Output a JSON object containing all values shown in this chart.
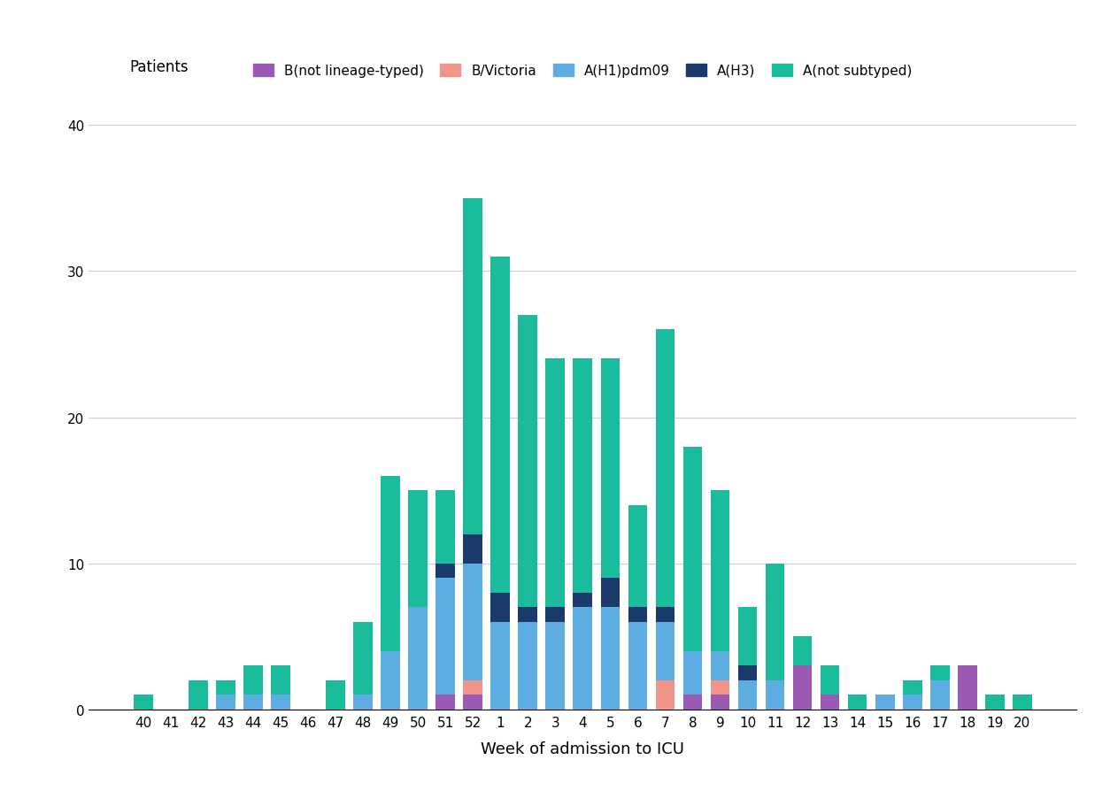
{
  "weeks": [
    "40",
    "41",
    "42",
    "43",
    "44",
    "45",
    "46",
    "47",
    "48",
    "49",
    "50",
    "51",
    "52",
    "1",
    "2",
    "3",
    "4",
    "5",
    "6",
    "7",
    "8",
    "9",
    "10",
    "11",
    "12",
    "13",
    "14",
    "15",
    "16",
    "17",
    "18",
    "19",
    "20"
  ],
  "series": {
    "B(not lineage-typed)": [
      0,
      0,
      0,
      0,
      0,
      0,
      0,
      0,
      0,
      0,
      0,
      1,
      1,
      0,
      0,
      0,
      0,
      0,
      0,
      0,
      1,
      1,
      0,
      0,
      3,
      1,
      0,
      0,
      0,
      0,
      3,
      0,
      0
    ],
    "B/Victoria": [
      0,
      0,
      0,
      0,
      0,
      0,
      0,
      0,
      0,
      0,
      0,
      0,
      1,
      0,
      0,
      0,
      0,
      0,
      0,
      2,
      0,
      1,
      0,
      0,
      0,
      0,
      0,
      0,
      0,
      0,
      0,
      0,
      0
    ],
    "A(H1)pdm09": [
      0,
      0,
      0,
      1,
      1,
      1,
      0,
      0,
      1,
      4,
      7,
      8,
      8,
      6,
      6,
      6,
      7,
      7,
      6,
      4,
      3,
      2,
      2,
      2,
      0,
      0,
      0,
      1,
      1,
      2,
      0,
      0,
      0
    ],
    "A(H3)": [
      0,
      0,
      0,
      0,
      0,
      0,
      0,
      0,
      0,
      0,
      0,
      1,
      2,
      2,
      1,
      1,
      1,
      2,
      1,
      1,
      0,
      0,
      1,
      0,
      0,
      0,
      0,
      0,
      0,
      0,
      0,
      0,
      0
    ],
    "A(not subtyped)": [
      1,
      0,
      2,
      1,
      2,
      2,
      0,
      2,
      5,
      12,
      8,
      5,
      23,
      23,
      20,
      17,
      16,
      15,
      7,
      19,
      14,
      11,
      4,
      8,
      2,
      2,
      1,
      0,
      1,
      1,
      0,
      1,
      1
    ]
  },
  "colors": {
    "B(not lineage-typed)": "#9B59B6",
    "B/Victoria": "#F1948A",
    "A(H1)pdm09": "#5DADE2",
    "A(H3)": "#1A3A6B",
    "A(not subtyped)": "#1ABC9C"
  },
  "ylabel": "Patients",
  "xlabel": "Week of admission to ICU",
  "ylim": [
    0,
    42
  ],
  "yticks": [
    0,
    10,
    20,
    30,
    40
  ],
  "background_color": "#ffffff",
  "legend_order": [
    "B(not lineage-typed)",
    "B/Victoria",
    "A(H1)pdm09",
    "A(H3)",
    "A(not subtyped)"
  ]
}
